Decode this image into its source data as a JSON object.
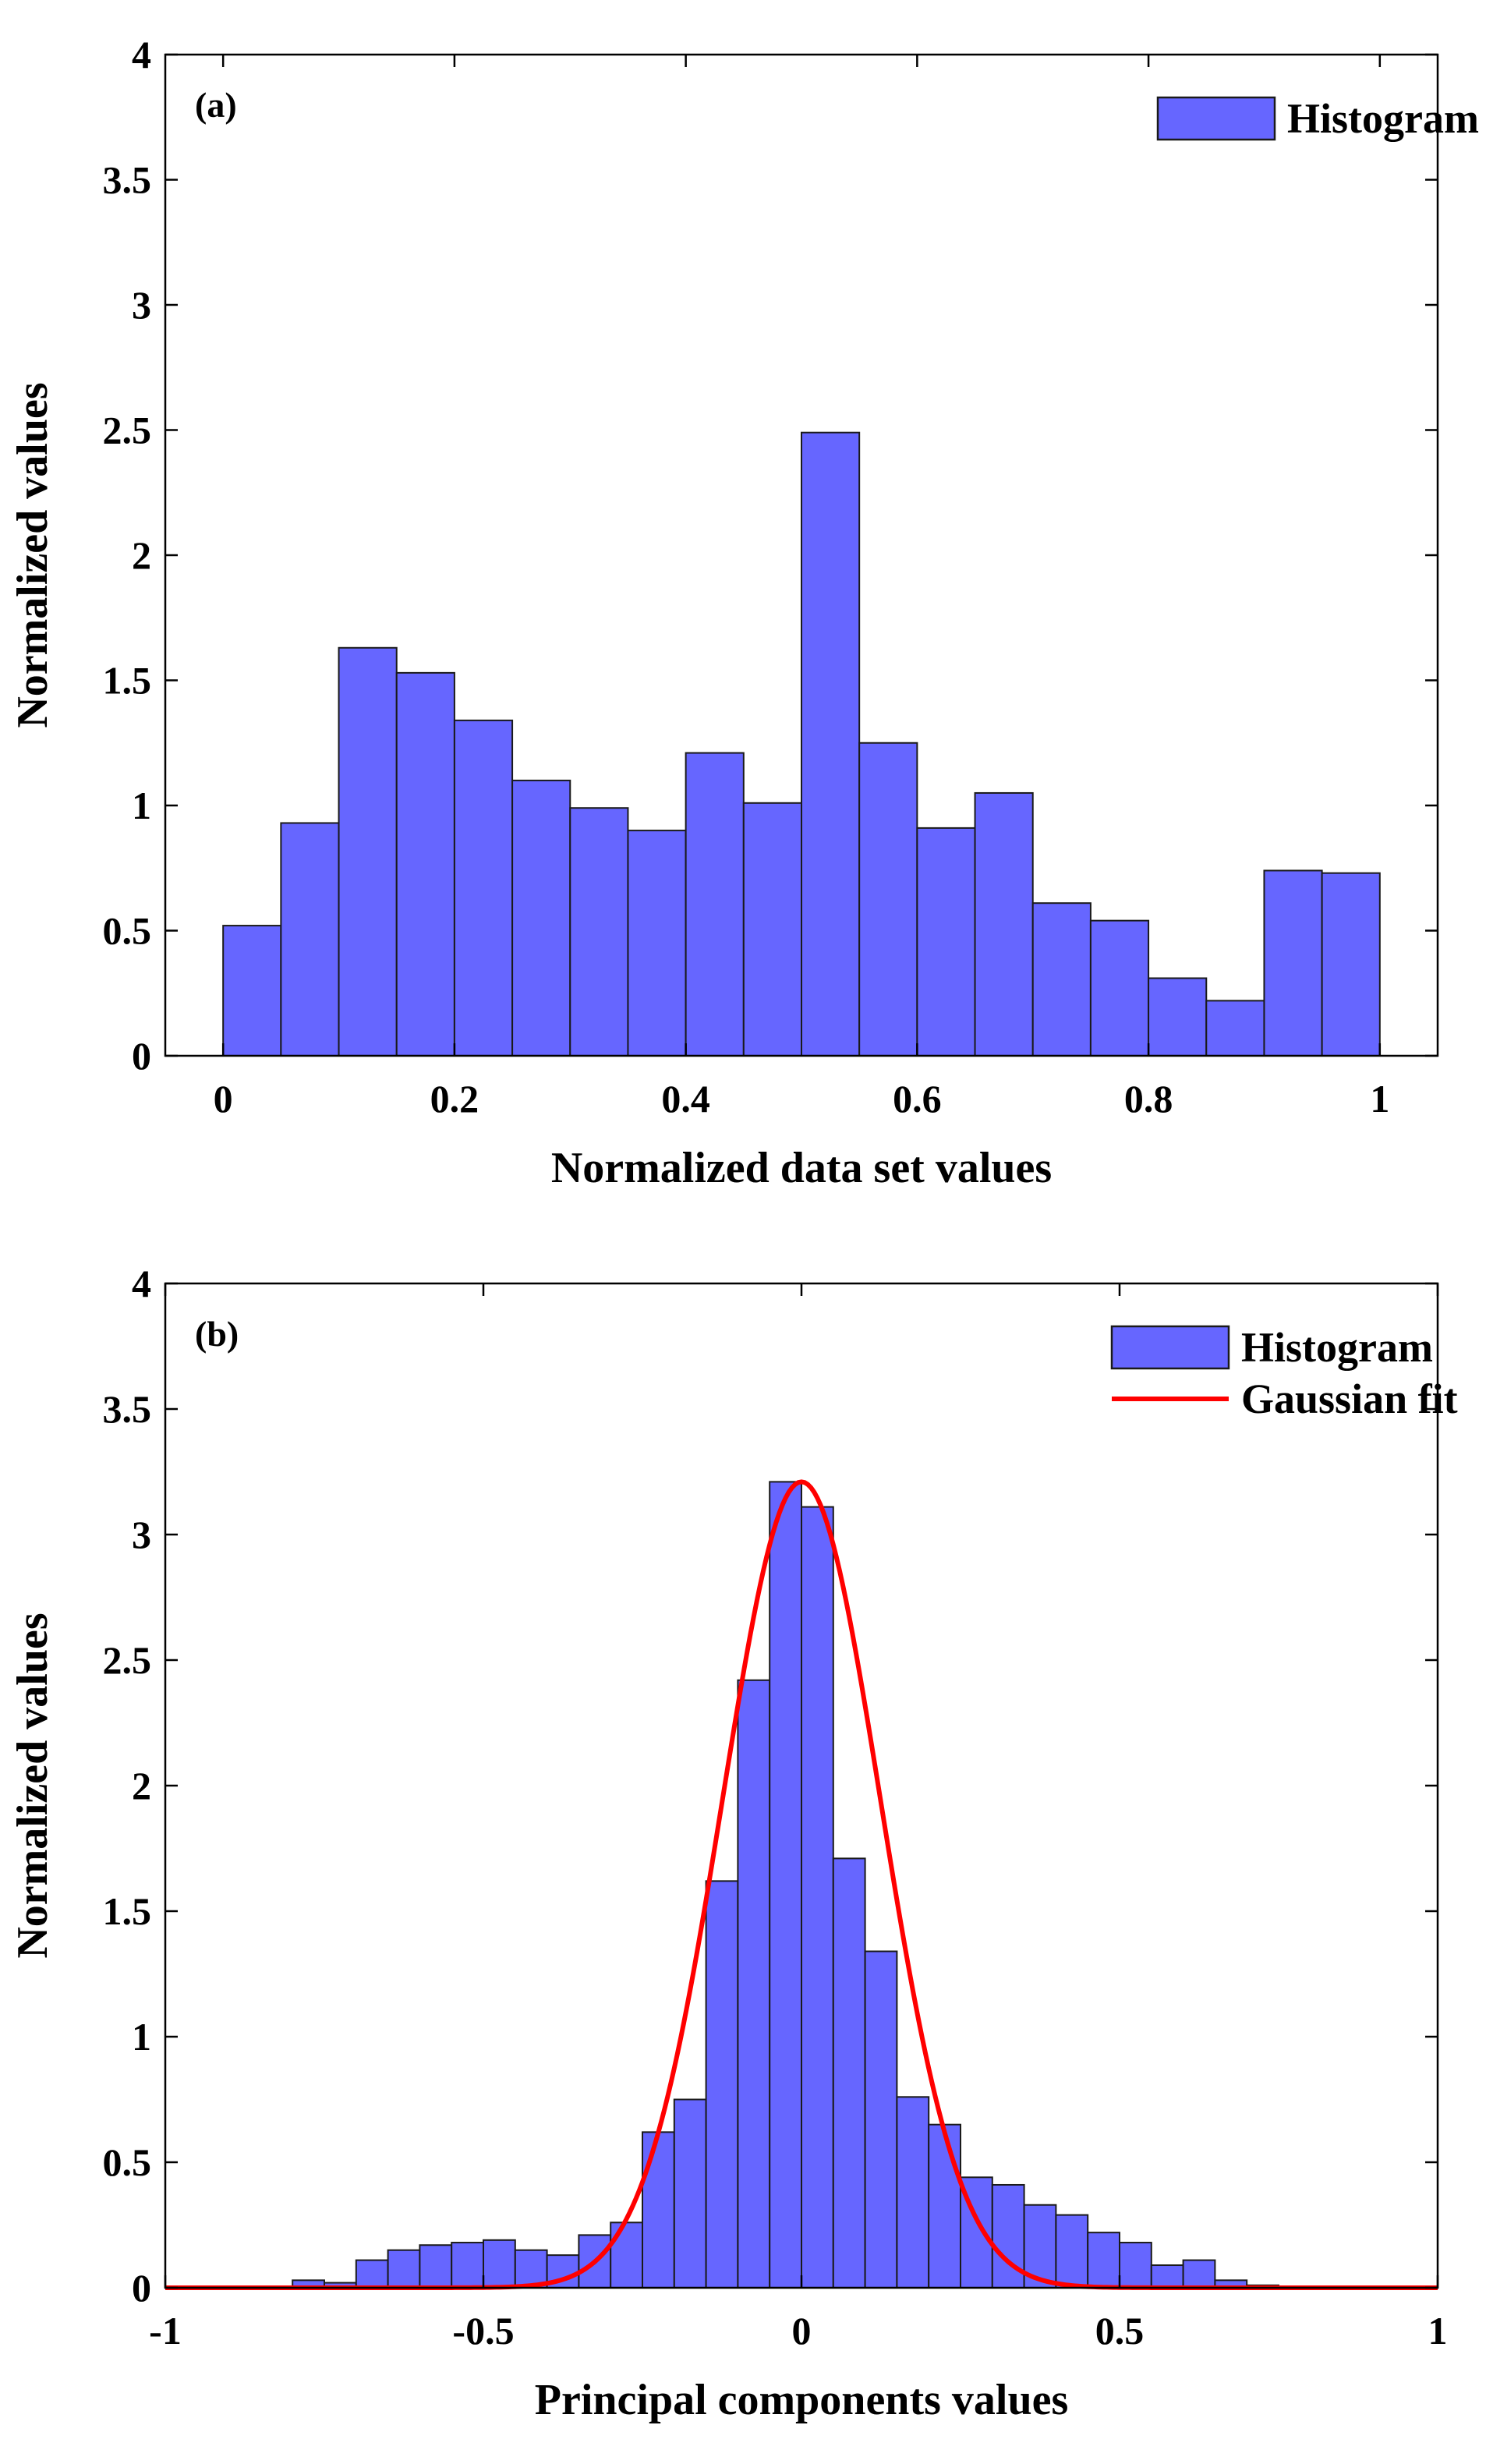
{
  "chart_data": [
    {
      "type": "bar",
      "panel_label": "(a)",
      "xlabel": "Normalized data set values",
      "ylabel": "Normalized values",
      "xlim": [
        -0.05,
        1.05
      ],
      "ylim": [
        0,
        4
      ],
      "x_ticks": [
        0,
        0.2,
        0.4,
        0.6,
        0.8,
        1
      ],
      "x_tick_labels": [
        "0",
        "0.2",
        "0.4",
        "0.6",
        "0.8",
        "1"
      ],
      "y_ticks": [
        0,
        0.5,
        1,
        1.5,
        2,
        2.5,
        3,
        3.5,
        4
      ],
      "y_tick_labels": [
        "0",
        "0.5",
        "1",
        "1.5",
        "2",
        "2.5",
        "3",
        "3.5",
        "4"
      ],
      "bin_edges": [
        0,
        0.05,
        0.1,
        0.15,
        0.2,
        0.25,
        0.3,
        0.35,
        0.4,
        0.45,
        0.5,
        0.55,
        0.6,
        0.65,
        0.7,
        0.75,
        0.8,
        0.85,
        0.9,
        0.95,
        1.0
      ],
      "series": [
        {
          "name": "Histogram",
          "color": "#6666ff",
          "values": [
            0.52,
            0.93,
            1.63,
            1.53,
            1.34,
            1.1,
            0.99,
            0.9,
            1.21,
            1.01,
            2.49,
            1.25,
            0.91,
            1.05,
            0.61,
            0.54,
            0.31,
            0.22,
            0.74,
            0.73
          ]
        }
      ],
      "legend": {
        "entries": [
          "Histogram"
        ],
        "position": "top-right"
      }
    },
    {
      "type": "bar",
      "panel_label": "(b)",
      "xlabel": "Principal components values",
      "ylabel": "Normalized values",
      "xlim": [
        -1,
        1
      ],
      "ylim": [
        0,
        4
      ],
      "x_ticks": [
        -1,
        -0.5,
        0,
        0.5,
        1
      ],
      "x_tick_labels": [
        "-1",
        "-0.5",
        "0",
        "0.5",
        "1"
      ],
      "y_ticks": [
        0,
        0.5,
        1,
        1.5,
        2,
        2.5,
        3,
        3.5,
        4
      ],
      "y_tick_labels": [
        "0",
        "0.5",
        "1",
        "1.5",
        "2",
        "2.5",
        "3",
        "3.5",
        "4"
      ],
      "bin_edges": [
        -0.8,
        -0.75,
        -0.7,
        -0.65,
        -0.6,
        -0.55,
        -0.5,
        -0.45,
        -0.4,
        -0.35,
        -0.3,
        -0.25,
        -0.2,
        -0.15,
        -0.1,
        -0.05,
        0,
        0.05,
        0.1,
        0.15,
        0.2,
        0.25,
        0.3,
        0.35,
        0.4,
        0.45,
        0.5,
        0.55,
        0.6,
        0.65,
        0.7,
        0.75
      ],
      "series": [
        {
          "name": "Histogram",
          "color": "#6666ff",
          "values": [
            0.03,
            0.02,
            0.11,
            0.15,
            0.17,
            0.18,
            0.19,
            0.15,
            0.13,
            0.21,
            0.26,
            0.62,
            0.75,
            1.62,
            2.42,
            3.21,
            3.11,
            1.71,
            1.34,
            0.76,
            0.65,
            0.44,
            0.41,
            0.33,
            0.29,
            0.22,
            0.18,
            0.09,
            0.11,
            0.03,
            0.01
          ]
        },
        {
          "name": "Gaussian fit",
          "type": "line",
          "color": "#ff0000",
          "mu": 0,
          "sigma": 0.124,
          "amplitude": 3.21
        }
      ],
      "legend": {
        "entries": [
          "Histogram",
          "Gaussian fit"
        ],
        "position": "top-right"
      }
    }
  ]
}
